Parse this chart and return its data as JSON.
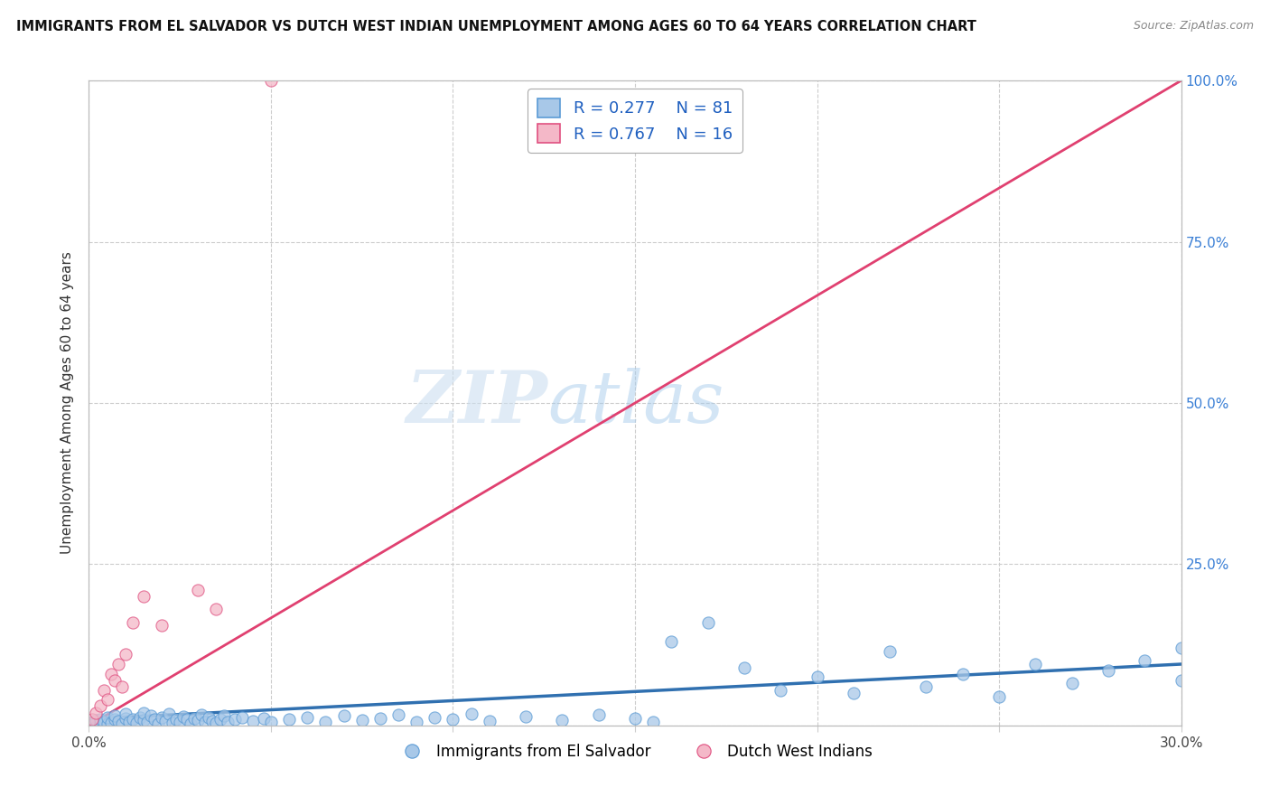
{
  "title": "IMMIGRANTS FROM EL SALVADOR VS DUTCH WEST INDIAN UNEMPLOYMENT AMONG AGES 60 TO 64 YEARS CORRELATION CHART",
  "source": "Source: ZipAtlas.com",
  "ylabel": "Unemployment Among Ages 60 to 64 years",
  "xlim": [
    0.0,
    0.3
  ],
  "ylim": [
    0.0,
    1.0
  ],
  "xticks": [
    0.0,
    0.05,
    0.1,
    0.15,
    0.2,
    0.25,
    0.3
  ],
  "yticks": [
    0.0,
    0.25,
    0.5,
    0.75,
    1.0
  ],
  "xtick_labels": [
    "0.0%",
    "",
    "",
    "",
    "",
    "",
    "30.0%"
  ],
  "ytick_labels": [
    "",
    "25.0%",
    "50.0%",
    "75.0%",
    "100.0%"
  ],
  "blue_color": "#a8c8e8",
  "pink_color": "#f4b8c8",
  "blue_edge_color": "#5b9bd5",
  "pink_edge_color": "#e05080",
  "blue_line_color": "#3070b0",
  "pink_line_color": "#e04070",
  "R_blue": 0.277,
  "N_blue": 81,
  "R_pink": 0.767,
  "N_pink": 16,
  "watermark_zip": "ZIP",
  "watermark_atlas": "atlas",
  "legend_label_blue": "Immigrants from El Salvador",
  "legend_label_pink": "Dutch West Indians",
  "blue_scatter_x": [
    0.001,
    0.002,
    0.003,
    0.003,
    0.004,
    0.005,
    0.005,
    0.006,
    0.007,
    0.007,
    0.008,
    0.009,
    0.01,
    0.01,
    0.011,
    0.012,
    0.013,
    0.014,
    0.015,
    0.015,
    0.016,
    0.017,
    0.018,
    0.019,
    0.02,
    0.021,
    0.022,
    0.023,
    0.024,
    0.025,
    0.026,
    0.027,
    0.028,
    0.029,
    0.03,
    0.031,
    0.032,
    0.033,
    0.034,
    0.035,
    0.036,
    0.037,
    0.038,
    0.04,
    0.042,
    0.045,
    0.048,
    0.05,
    0.055,
    0.06,
    0.065,
    0.07,
    0.075,
    0.08,
    0.085,
    0.09,
    0.095,
    0.1,
    0.105,
    0.11,
    0.12,
    0.13,
    0.14,
    0.15,
    0.155,
    0.16,
    0.17,
    0.18,
    0.19,
    0.2,
    0.21,
    0.22,
    0.23,
    0.24,
    0.25,
    0.26,
    0.27,
    0.28,
    0.29,
    0.3,
    0.3
  ],
  "blue_scatter_y": [
    0.005,
    0.008,
    0.003,
    0.01,
    0.006,
    0.002,
    0.012,
    0.004,
    0.009,
    0.015,
    0.007,
    0.003,
    0.011,
    0.018,
    0.006,
    0.01,
    0.004,
    0.013,
    0.008,
    0.02,
    0.005,
    0.015,
    0.009,
    0.003,
    0.012,
    0.007,
    0.018,
    0.004,
    0.01,
    0.006,
    0.014,
    0.009,
    0.003,
    0.011,
    0.008,
    0.016,
    0.005,
    0.012,
    0.007,
    0.004,
    0.01,
    0.015,
    0.006,
    0.009,
    0.013,
    0.007,
    0.011,
    0.005,
    0.009,
    0.012,
    0.006,
    0.015,
    0.008,
    0.011,
    0.016,
    0.006,
    0.013,
    0.009,
    0.018,
    0.007,
    0.014,
    0.008,
    0.017,
    0.011,
    0.005,
    0.13,
    0.16,
    0.09,
    0.055,
    0.075,
    0.05,
    0.115,
    0.06,
    0.08,
    0.045,
    0.095,
    0.065,
    0.085,
    0.1,
    0.12,
    0.07
  ],
  "pink_scatter_x": [
    0.001,
    0.002,
    0.003,
    0.004,
    0.005,
    0.006,
    0.007,
    0.008,
    0.009,
    0.01,
    0.012,
    0.015,
    0.02,
    0.03,
    0.035,
    0.05
  ],
  "pink_scatter_y": [
    0.01,
    0.02,
    0.03,
    0.055,
    0.04,
    0.08,
    0.07,
    0.095,
    0.06,
    0.11,
    0.16,
    0.2,
    0.155,
    0.21,
    0.18,
    1.0
  ],
  "pink_trend_x": [
    0.0,
    0.3
  ],
  "pink_trend_y": [
    0.0,
    1.0
  ],
  "blue_trend_x": [
    0.0,
    0.3
  ],
  "blue_trend_y": [
    0.01,
    0.095
  ]
}
